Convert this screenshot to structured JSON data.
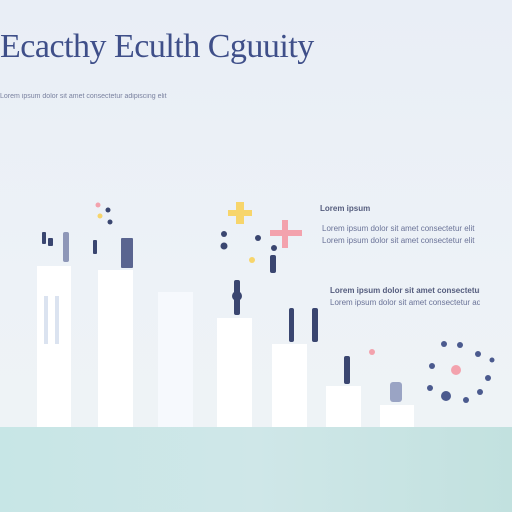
{
  "header": {
    "title": "Ecacthy Eculth Cguuity",
    "subtitle": "Lorem ipsum dolor sit amet consectetur adipiscing elit"
  },
  "notes": {
    "heading": "Lorem ipsum",
    "line_1": "Lorem ipsum dolor sit amet consectetur elit",
    "line_2": "Lorem ipsum dolor sit amet consectetur adipiscing"
  },
  "colors": {
    "title": "#3f4f89",
    "bar": "#ffffff",
    "ground": "#c7e6e6",
    "accent_pink": "#f3a2ad",
    "accent_yellow": "#f7d56b",
    "accent_navy": "#3a4670"
  }
}
